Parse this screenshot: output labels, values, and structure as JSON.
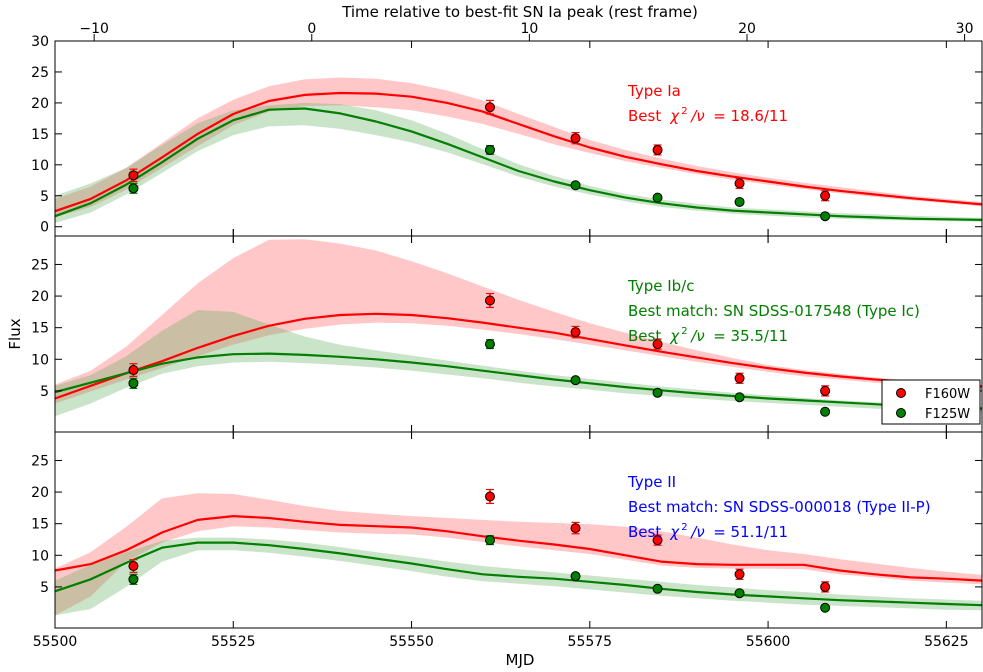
{
  "chart_data": {
    "type": "line",
    "xlabel": "MJD",
    "ylabel": "Flux",
    "top_xlabel": "Time relative to best-fit SN Ia peak (rest frame)",
    "xlim": [
      55500,
      55630
    ],
    "x_ticks": [
      "55500",
      "55525",
      "55550",
      "55575",
      "55600",
      "55625"
    ],
    "top_xlim": [
      -11.8,
      30.8
    ],
    "top_ticks": [
      "−10",
      "0",
      "10",
      "20",
      "30"
    ],
    "colors": {
      "F160W": "#ff0000",
      "F125W": "#007f00",
      "Ia": "#ff0000",
      "Ibc": "#007f00",
      "II": "#0000ff"
    },
    "legend": {
      "placement": "right (middle panel)",
      "entries": [
        "F160W",
        "F125W"
      ]
    },
    "observations": {
      "mjd": [
        55511,
        55561,
        55573,
        55584.5,
        55596,
        55608
      ],
      "F160W": {
        "flux": [
          8.3,
          19.3,
          14.3,
          12.4,
          7.0,
          5.0
        ],
        "err": [
          1.0,
          1.1,
          0.9,
          0.8,
          0.8,
          0.8
        ]
      },
      "F125W": {
        "flux": [
          6.2,
          12.4,
          6.7,
          4.7,
          4.0,
          1.7
        ],
        "err": [
          0.8,
          0.7,
          0.4,
          0.4,
          0.4,
          0.4
        ]
      }
    },
    "panels": [
      {
        "key": "Ia",
        "ylim": [
          -1.5,
          30
        ],
        "y_ticks": [
          0,
          5,
          10,
          15,
          20,
          25,
          30
        ],
        "y_tick_labels": [
          "0",
          "5",
          "10",
          "15",
          "20",
          "25",
          "30"
        ],
        "annotation_color": "#ff0000",
        "annotation": [
          "Type Ia",
          "Best"
        ],
        "chi2_value": "= 18.6/11",
        "models": {
          "F160W": {
            "x": [
              55500,
              55505,
              55510,
              55515,
              55520,
              55525,
              55530,
              55535,
              55540,
              55545,
              55550,
              55555,
              55560,
              55565,
              55570,
              55575,
              55580,
              55585,
              55590,
              55595,
              55600,
              55605,
              55610,
              55615,
              55620,
              55625,
              55630
            ],
            "y": [
              2.5,
              4.5,
              7.5,
              11.2,
              15,
              18.2,
              20.3,
              21.3,
              21.6,
              21.5,
              21,
              20,
              18.6,
              16.6,
              14.6,
              12.8,
              11.3,
              10.1,
              9.0,
              8.1,
              7.3,
              6.5,
              5.8,
              5.2,
              4.6,
              4.1,
              3.6
            ],
            "lo": [
              1.5,
              3.2,
              6.0,
              9.5,
              13.0,
              16.4,
              18.6,
              19.5,
              19.6,
              19.3,
              18.8,
              17.8,
              16.6,
              15.0,
              13.3,
              11.9,
              10.6,
              9.5,
              8.5,
              7.6,
              6.8,
              6.1,
              5.4,
              4.8,
              4.3,
              3.8,
              3.3
            ],
            "hi": [
              4.5,
              6.5,
              9.5,
              13.5,
              17.5,
              20.5,
              22.7,
              23.8,
              24.1,
              23.9,
              23.2,
              22.0,
              20.4,
              18.2,
              16.1,
              14.0,
              12.4,
              11.0,
              9.8,
              8.8,
              7.9,
              7.1,
              6.4,
              5.7,
              5.0,
              4.5,
              4.0
            ]
          },
          "F125W": {
            "x": [
              55500,
              55505,
              55510,
              55515,
              55520,
              55525,
              55530,
              55535,
              55540,
              55545,
              55550,
              55555,
              55560,
              55565,
              55570,
              55575,
              55580,
              55585,
              55590,
              55595,
              55600,
              55605,
              55610,
              55615,
              55620,
              55625,
              55630
            ],
            "y": [
              1.7,
              3.8,
              6.8,
              10.4,
              14.2,
              17.2,
              18.9,
              19.1,
              18.3,
              17.0,
              15.4,
              13.4,
              11.2,
              9.0,
              7.3,
              5.9,
              4.7,
              3.8,
              3.1,
              2.6,
              2.3,
              2.0,
              1.7,
              1.5,
              1.3,
              1.2,
              1.1
            ],
            "lo": [
              0.6,
              2.3,
              5.2,
              8.7,
              12.2,
              14.8,
              16.2,
              16.4,
              15.8,
              14.8,
              13.6,
              12.0,
              10.1,
              8.1,
              6.5,
              5.2,
              4.1,
              3.2,
              2.6,
              2.1,
              1.8,
              1.5,
              1.3,
              1.1,
              1.0,
              0.9,
              0.8
            ],
            "hi": [
              5.0,
              7.0,
              9.5,
              13.2,
              16.7,
              18.8,
              19.6,
              20.0,
              19.8,
              18.8,
              17.2,
              15.0,
              12.5,
              10.1,
              8.2,
              6.6,
              5.3,
              4.4,
              3.7,
              3.1,
              2.8,
              2.5,
              2.2,
              2.0,
              1.8,
              1.6,
              1.4
            ]
          }
        }
      },
      {
        "key": "Ibc",
        "ylim": [
          -1.5,
          29.5
        ],
        "y_ticks": [
          5,
          10,
          15,
          20,
          25
        ],
        "y_tick_labels": [
          "5",
          "10",
          "15",
          "20",
          "25"
        ],
        "annotation_color": "#007f00",
        "annotation": [
          "Type Ib/c",
          "Best match: SN SDSS-017548 (Type Ic)",
          "Best"
        ],
        "chi2_value": "= 35.5/11",
        "models": {
          "F160W": {
            "x": [
              55500,
              55505,
              55510,
              55515,
              55520,
              55525,
              55530,
              55535,
              55540,
              55545,
              55550,
              55555,
              55560,
              55565,
              55570,
              55575,
              55580,
              55585,
              55590,
              55595,
              55600,
              55605,
              55610,
              55615,
              55620,
              55625,
              55630
            ],
            "y": [
              3.8,
              5.8,
              7.8,
              9.7,
              11.8,
              13.7,
              15.3,
              16.4,
              17.0,
              17.2,
              17.0,
              16.5,
              15.8,
              15.0,
              14.2,
              13.2,
              12.2,
              11.2,
              10.3,
              9.4,
              8.6,
              7.9,
              7.3,
              6.8,
              6.4,
              6.1,
              5.7
            ],
            "lo": [
              3.0,
              4.9,
              6.8,
              8.6,
              10.5,
              12.3,
              13.8,
              14.8,
              15.5,
              15.8,
              15.7,
              15.3,
              14.7,
              14.0,
              13.2,
              12.3,
              11.4,
              10.5,
              9.6,
              8.8,
              8.0,
              7.3,
              6.8,
              6.3,
              5.9,
              5.6,
              5.2
            ],
            "hi": [
              6.0,
              8.2,
              12.0,
              17.0,
              22.0,
              26.0,
              28.9,
              29.0,
              28.3,
              27.2,
              25.5,
              23.6,
              21.5,
              19.4,
              17.5,
              15.7,
              14.2,
              12.8,
              11.4,
              10.2,
              9.1,
              8.3,
              7.7,
              7.1,
              6.7,
              6.4,
              6.0
            ]
          },
          "F125W": {
            "x": [
              55500,
              55505,
              55510,
              55515,
              55520,
              55525,
              55530,
              55535,
              55540,
              55545,
              55550,
              55555,
              55560,
              55565,
              55570,
              55575,
              55580,
              55585,
              55590,
              55595,
              55600,
              55605,
              55610,
              55615,
              55620,
              55625,
              55630
            ],
            "y": [
              4.8,
              6.3,
              7.8,
              9.3,
              10.3,
              10.8,
              10.9,
              10.7,
              10.4,
              10.0,
              9.5,
              8.9,
              8.2,
              7.5,
              6.8,
              6.2,
              5.6,
              5.1,
              4.6,
              4.2,
              3.8,
              3.5,
              3.2,
              2.9,
              2.6,
              2.4,
              2.2
            ],
            "lo": [
              1.0,
              3.0,
              5.5,
              7.7,
              8.9,
              9.5,
              9.6,
              9.4,
              9.1,
              8.7,
              8.2,
              7.6,
              7.0,
              6.3,
              5.7,
              5.2,
              4.6,
              4.2,
              3.8,
              3.4,
              3.1,
              2.8,
              2.5,
              2.2,
              2.0,
              1.8,
              1.6
            ],
            "hi": [
              5.8,
              7.5,
              10.5,
              14.5,
              17.8,
              17.5,
              15.5,
              13.6,
              12.3,
              11.4,
              10.6,
              9.8,
              9.0,
              8.2,
              7.5,
              6.9,
              6.3,
              5.7,
              5.2,
              4.7,
              4.3,
              3.9,
              3.5,
              3.2,
              2.9,
              2.7,
              2.5
            ]
          }
        }
      },
      {
        "key": "II",
        "ylim": [
          -1.5,
          29.5
        ],
        "y_ticks": [
          5,
          10,
          15,
          20,
          25
        ],
        "y_tick_labels": [
          "5",
          "10",
          "15",
          "20",
          "25"
        ],
        "annotation_color": "#0000ff",
        "annotation": [
          "Type II",
          "Best match: SN SDSS-000018 (Type II-P)",
          "Best"
        ],
        "chi2_value": "= 51.1/11",
        "models": {
          "F160W": {
            "x": [
              55500,
              55505,
              55510,
              55515,
              55520,
              55525,
              55530,
              55535,
              55540,
              55545,
              55550,
              55555,
              55560,
              55565,
              55570,
              55575,
              55580,
              55585,
              55590,
              55595,
              55600,
              55605,
              55610,
              55615,
              55620,
              55625,
              55630
            ],
            "y": [
              7.6,
              8.6,
              10.8,
              13.6,
              15.6,
              16.2,
              15.9,
              15.3,
              14.8,
              14.6,
              14.4,
              13.8,
              13.0,
              12.3,
              11.7,
              11.0,
              10.0,
              9.0,
              8.6,
              8.5,
              8.5,
              8.5,
              7.6,
              7.0,
              6.5,
              6.3,
              6.0
            ],
            "lo": [
              0.5,
              3.5,
              9.0,
              12.0,
              13.8,
              14.6,
              14.4,
              14.0,
              13.6,
              13.4,
              13.3,
              12.8,
              12.1,
              11.4,
              10.8,
              10.2,
              9.3,
              8.4,
              8.0,
              7.9,
              7.9,
              7.8,
              7.0,
              6.5,
              6.0,
              5.7,
              5.4
            ],
            "hi": [
              7.9,
              10.5,
              14.5,
              19.0,
              19.8,
              19.7,
              18.8,
              17.8,
              17.0,
              16.6,
              16.2,
              15.9,
              15.6,
              15.3,
              15.1,
              14.9,
              14.5,
              13.8,
              12.8,
              11.7,
              10.8,
              10.2,
              9.4,
              8.7,
              8.0,
              7.4,
              6.9
            ]
          },
          "F125W": {
            "x": [
              55500,
              55505,
              55510,
              55515,
              55520,
              55525,
              55530,
              55535,
              55540,
              55545,
              55550,
              55555,
              55560,
              55565,
              55570,
              55575,
              55580,
              55585,
              55590,
              55595,
              55600,
              55605,
              55610,
              55615,
              55620,
              55625,
              55630
            ],
            "y": [
              4.3,
              6.2,
              8.8,
              11.2,
              12.0,
              12.0,
              11.6,
              11.0,
              10.3,
              9.5,
              8.7,
              7.8,
              7.0,
              6.6,
              6.3,
              5.8,
              5.3,
              4.7,
              4.2,
              3.8,
              3.5,
              3.2,
              2.9,
              2.7,
              2.5,
              2.3,
              2.1
            ],
            "lo": [
              0.5,
              1.5,
              5.0,
              9.0,
              10.8,
              10.8,
              10.4,
              9.8,
              9.1,
              8.3,
              7.5,
              6.6,
              5.9,
              5.5,
              5.1,
              4.6,
              4.1,
              3.6,
              3.2,
              2.8,
              2.5,
              2.2,
              2.0,
              1.8,
              1.6,
              1.4,
              1.3
            ],
            "hi": [
              6.0,
              8.5,
              10.5,
              12.3,
              12.8,
              12.8,
              12.5,
              12.0,
              11.3,
              10.5,
              9.8,
              9.0,
              8.3,
              7.8,
              7.3,
              6.8,
              6.3,
              5.8,
              5.3,
              4.9,
              4.5,
              4.2,
              3.8,
              3.5,
              3.2,
              3.0,
              2.8
            ]
          }
        }
      }
    ]
  }
}
